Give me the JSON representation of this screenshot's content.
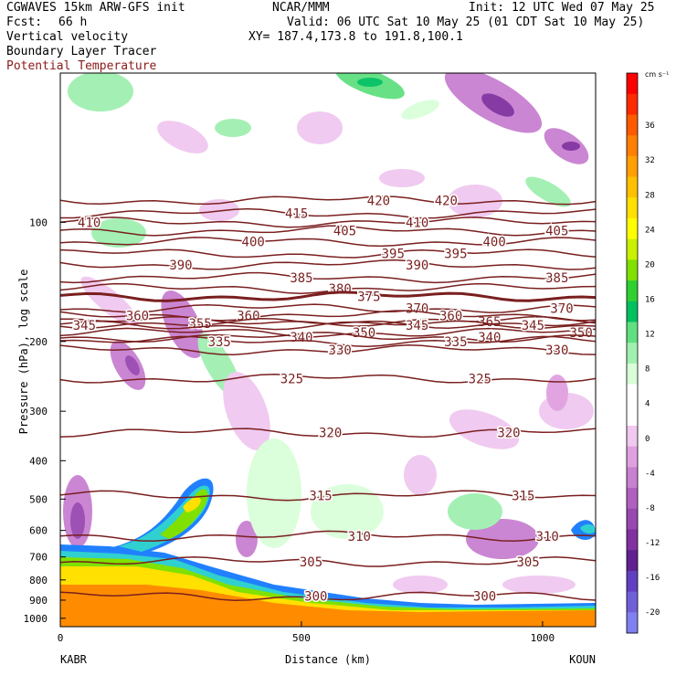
{
  "header": {
    "model": "CGWAVES 15km ARW-GFS init",
    "org": "NCAR/MMM",
    "init": "Init: 12 UTC Wed 07 May 25",
    "fcst_label": "Fcst:",
    "fcst_value": "66 h",
    "valid": "Valid: 06 UTC Sat 10 May 25 (01 CDT Sat 10 May 25)",
    "field1": "Vertical velocity",
    "field2": "Boundary Layer Tracer",
    "field3": "Potential Temperature",
    "xy": "XY= 187.4,173.8 to 191.8,100.1"
  },
  "colors": {
    "theta": "#7a1f1f",
    "field3_text": "#8b1a1a"
  },
  "chart_data": {
    "type": "cross-section",
    "xlabel": "Distance (km)",
    "ylabel": "Pressure (hPa), log scale",
    "x_ticks": [
      0,
      500,
      1000
    ],
    "xlim": [
      0,
      1110
    ],
    "y_ticks": [
      100,
      200,
      300,
      400,
      500,
      600,
      700,
      800,
      900,
      1000
    ],
    "ylim": [
      1050,
      42
    ],
    "y_scale": "log",
    "left_station": "KABR",
    "right_station": "KOUN",
    "colorbar": {
      "unit": "cm s⁻¹",
      "ticks": [
        36,
        32,
        28,
        24,
        20,
        16,
        12,
        8,
        4,
        0,
        -4,
        -8,
        -12,
        -16,
        -20
      ],
      "colors": [
        "#ff0000",
        "#ff2a00",
        "#ff5a00",
        "#ff7f00",
        "#ffa000",
        "#ffc000",
        "#ffe000",
        "#ffff00",
        "#c8f000",
        "#80e000",
        "#30d030",
        "#00c060",
        "#60e080",
        "#a0f0b0",
        "#d8ffd8",
        "#ffffff",
        "#ffffff",
        "#f0c8f0",
        "#e0a0e0",
        "#c880d0",
        "#b060c0",
        "#9848b0",
        "#8030a0",
        "#602090",
        "#6040c0",
        "#7060d8",
        "#8080f0"
      ]
    },
    "theta_contours": [
      {
        "value": 420,
        "p": 88,
        "labels": [
          {
            "x": 660,
            "t": "420"
          },
          {
            "x": 800,
            "t": "420"
          }
        ]
      },
      {
        "value": 415,
        "p": 95,
        "labels": [
          {
            "x": 490,
            "t": "415"
          }
        ]
      },
      {
        "value": 410,
        "p": 100,
        "labels": [
          {
            "x": 60,
            "t": "410"
          },
          {
            "x": 740,
            "t": "410"
          }
        ]
      },
      {
        "value": 405,
        "p": 105,
        "labels": [
          {
            "x": 590,
            "t": "405"
          },
          {
            "x": 1030,
            "t": "405"
          }
        ]
      },
      {
        "value": 400,
        "p": 112,
        "labels": [
          {
            "x": 400,
            "t": "400"
          },
          {
            "x": 900,
            "t": "400"
          }
        ]
      },
      {
        "value": 395,
        "p": 120,
        "labels": [
          {
            "x": 690,
            "t": "395"
          },
          {
            "x": 820,
            "t": "395"
          }
        ]
      },
      {
        "value": 390,
        "p": 128,
        "labels": [
          {
            "x": 250,
            "t": "390"
          },
          {
            "x": 740,
            "t": "390"
          }
        ]
      },
      {
        "value": 385,
        "p": 138,
        "labels": [
          {
            "x": 500,
            "t": "385"
          },
          {
            "x": 1030,
            "t": "385"
          }
        ]
      },
      {
        "value": 380,
        "p": 147,
        "labels": [
          {
            "x": 580,
            "t": "380"
          }
        ]
      },
      {
        "value": 375,
        "p": 154,
        "labels": [
          {
            "x": 640,
            "t": "375"
          }
        ]
      },
      {
        "value": 370,
        "p": 165,
        "labels": [
          {
            "x": 740,
            "t": "370"
          },
          {
            "x": 1040,
            "t": "370"
          }
        ]
      },
      {
        "value": 365,
        "p": 178,
        "labels": [
          {
            "x": 890,
            "t": "365"
          }
        ]
      },
      {
        "value": 360,
        "p": 172,
        "labels": [
          {
            "x": 160,
            "t": "360"
          },
          {
            "x": 390,
            "t": "360"
          },
          {
            "x": 810,
            "t": "360"
          }
        ]
      },
      {
        "value": 355,
        "p": 180,
        "labels": [
          {
            "x": 290,
            "t": "355"
          }
        ]
      },
      {
        "value": 350,
        "p": 190,
        "labels": [
          {
            "x": 630,
            "t": "350"
          },
          {
            "x": 1080,
            "t": "350"
          }
        ]
      },
      {
        "value": 345,
        "p": 182,
        "labels": [
          {
            "x": 50,
            "t": "345"
          },
          {
            "x": 740,
            "t": "345"
          },
          {
            "x": 980,
            "t": "345"
          }
        ]
      },
      {
        "value": 340,
        "p": 195,
        "labels": [
          {
            "x": 500,
            "t": "340"
          },
          {
            "x": 890,
            "t": "340"
          }
        ]
      },
      {
        "value": 335,
        "p": 200,
        "labels": [
          {
            "x": 330,
            "t": "335"
          },
          {
            "x": 820,
            "t": "335"
          }
        ]
      },
      {
        "value": 330,
        "p": 210,
        "labels": [
          {
            "x": 580,
            "t": "330"
          },
          {
            "x": 1030,
            "t": "330"
          }
        ]
      },
      {
        "value": 325,
        "p": 248,
        "labels": [
          {
            "x": 480,
            "t": "325"
          },
          {
            "x": 870,
            "t": "325"
          }
        ]
      },
      {
        "value": 320,
        "p": 340,
        "labels": [
          {
            "x": 560,
            "t": "320"
          },
          {
            "x": 930,
            "t": "320"
          }
        ]
      },
      {
        "value": 315,
        "p": 490,
        "labels": [
          {
            "x": 540,
            "t": "315"
          },
          {
            "x": 960,
            "t": "315"
          }
        ]
      },
      {
        "value": 310,
        "p": 620,
        "labels": [
          {
            "x": 620,
            "t": "310"
          },
          {
            "x": 1010,
            "t": "310"
          }
        ]
      },
      {
        "value": 305,
        "p": 720,
        "labels": [
          {
            "x": 520,
            "t": "305"
          },
          {
            "x": 970,
            "t": "305"
          }
        ]
      },
      {
        "value": 300,
        "p": 880,
        "labels": [
          {
            "x": 530,
            "t": "300"
          },
          {
            "x": 880,
            "t": "300"
          }
        ]
      }
    ]
  }
}
